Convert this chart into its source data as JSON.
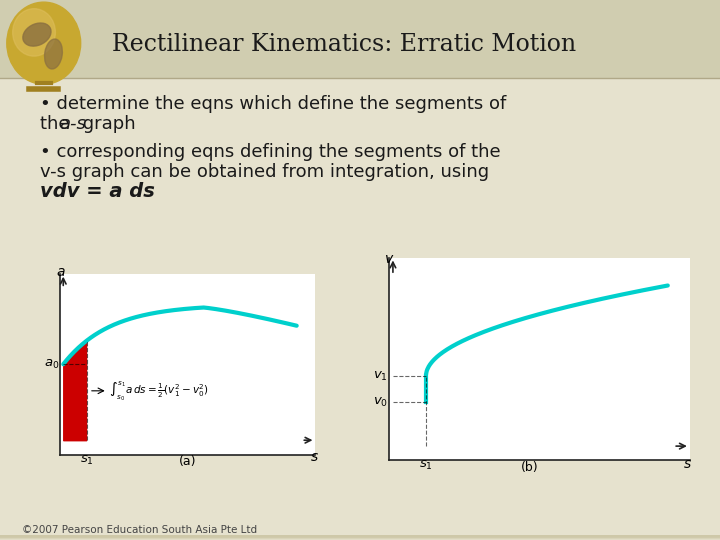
{
  "title": "Rectilinear Kinematics: Erratic Motion",
  "bg_top": "#e6e2ce",
  "bg_bottom": "#cec8a8",
  "header_bg": "#d0cdb0",
  "text_color": "#1a1a1a",
  "bullet1_text": "• determine the eqns which define the segments of\nthe a-s graph",
  "bullet2_line1": "• corresponding eqns defining the segments of the",
  "bullet2_line2": "v-s graph can be obtained from integration, using",
  "bullet2_line3": "vdv = a ds",
  "formula_text": "$\\leftarrow\\int_{s_0}^{s_1}a\\,ds = \\frac{1}{2}(v_1^2 - v_0^2)$",
  "caption_a": "(a)",
  "caption_b": "(b)",
  "footer": "©2007 Pearson Education South Asia Pte Ltd",
  "curve_color": "#00d0cc",
  "red_fill": "#cc0000",
  "plot_bg": "#ffffff",
  "axis_color": "#222222",
  "globe_body": "#c8a830",
  "globe_shadow": "#a08020",
  "globe_land": "#8B7040"
}
